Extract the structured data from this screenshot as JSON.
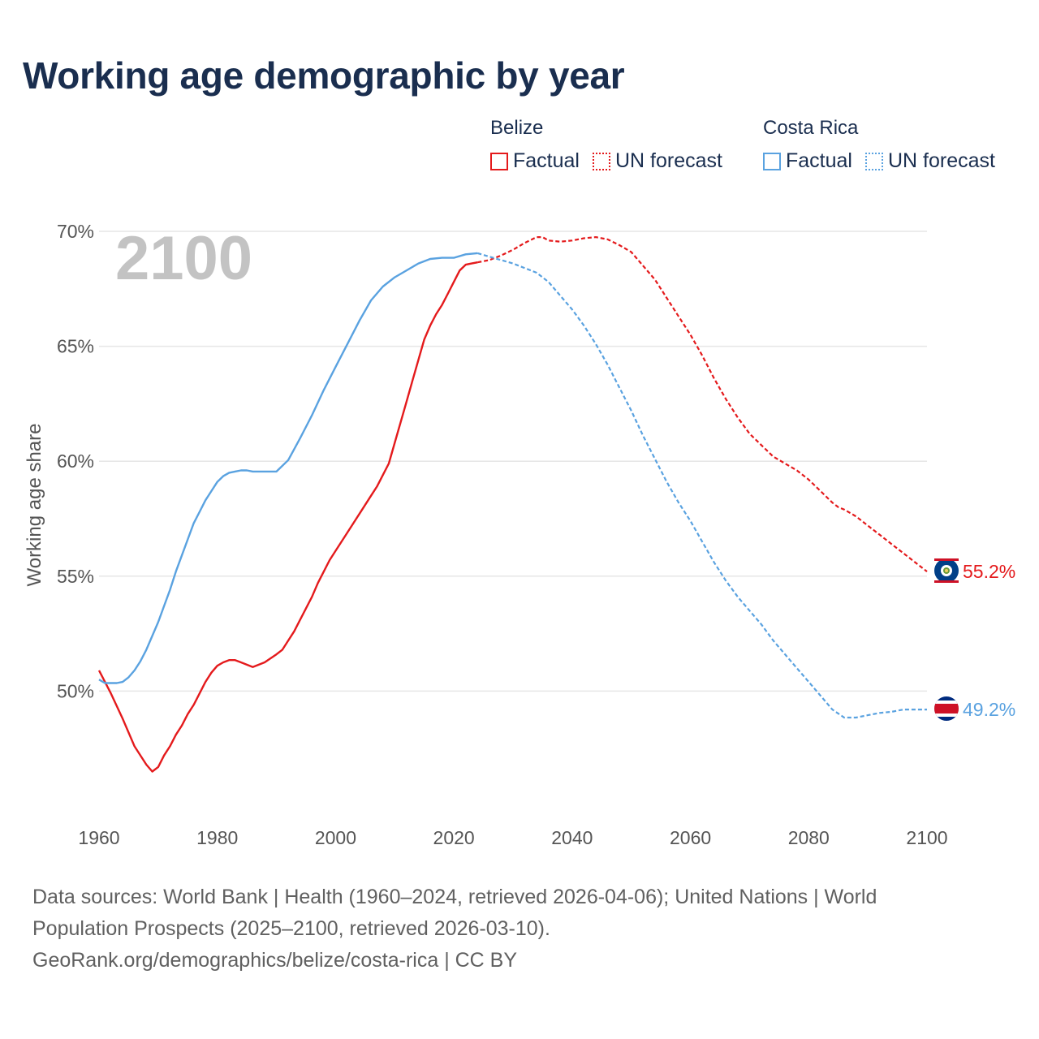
{
  "title": "Working age demographic by year",
  "legend": {
    "groups": [
      {
        "country": "Belize",
        "factual_label": "Factual",
        "forecast_label": "UN forecast",
        "color": "#e41a1c"
      },
      {
        "country": "Costa Rica",
        "factual_label": "Factual",
        "forecast_label": "UN forecast",
        "color": "#5aa2e0"
      }
    ]
  },
  "footer": {
    "line1": "Data sources: World Bank | Health (1960–2024, retrieved 2026-04-06); United Nations | World",
    "line2": "Population Prospects (2025–2100, retrieved 2026-03-10).",
    "line3": "GeoRank.org/demographics/belize/costa-rica | CC BY"
  },
  "chart_data": {
    "type": "line",
    "title": "Working age demographic by year",
    "ylabel": "Working age share",
    "xlabel": "",
    "year_watermark": "2100",
    "xlim": [
      1960,
      2100
    ],
    "ylim": [
      45,
      70
    ],
    "x_ticks": [
      "1960",
      "1980",
      "2000",
      "2020",
      "2040",
      "2060",
      "2080",
      "2100"
    ],
    "y_ticks": [
      {
        "value": 50,
        "label": "50%"
      },
      {
        "value": 55,
        "label": "55%"
      },
      {
        "value": 60,
        "label": "60%"
      },
      {
        "value": 65,
        "label": "65%"
      },
      {
        "value": 70,
        "label": "70%"
      }
    ],
    "forecast_start_year": 2024,
    "series": [
      {
        "name": "Belize",
        "color": "#e41a1c",
        "end_label": "55.2%",
        "flag": "belize-flag",
        "points": [
          [
            1960,
            50.9
          ],
          [
            1962,
            49.9
          ],
          [
            1964,
            48.8
          ],
          [
            1966,
            47.6
          ],
          [
            1968,
            46.8
          ],
          [
            1969,
            46.5
          ],
          [
            1970,
            46.7
          ],
          [
            1971,
            47.2
          ],
          [
            1972,
            47.6
          ],
          [
            1973,
            48.1
          ],
          [
            1974,
            48.5
          ],
          [
            1975,
            49.0
          ],
          [
            1976,
            49.4
          ],
          [
            1977,
            49.9
          ],
          [
            1978,
            50.4
          ],
          [
            1979,
            50.8
          ],
          [
            1980,
            51.1
          ],
          [
            1981,
            51.25
          ],
          [
            1982,
            51.35
          ],
          [
            1983,
            51.35
          ],
          [
            1984,
            51.25
          ],
          [
            1986,
            51.05
          ],
          [
            1988,
            51.25
          ],
          [
            1990,
            51.6
          ],
          [
            1991,
            51.8
          ],
          [
            1992,
            52.2
          ],
          [
            1993,
            52.6
          ],
          [
            1994,
            53.1
          ],
          [
            1995,
            53.6
          ],
          [
            1996,
            54.1
          ],
          [
            1997,
            54.7
          ],
          [
            1998,
            55.2
          ],
          [
            1999,
            55.7
          ],
          [
            2000,
            56.1
          ],
          [
            2002,
            56.9
          ],
          [
            2004,
            57.7
          ],
          [
            2006,
            58.5
          ],
          [
            2007,
            58.9
          ],
          [
            2008,
            59.4
          ],
          [
            2009,
            59.9
          ],
          [
            2010,
            60.8
          ],
          [
            2011,
            61.7
          ],
          [
            2012,
            62.6
          ],
          [
            2013,
            63.5
          ],
          [
            2014,
            64.4
          ],
          [
            2015,
            65.3
          ],
          [
            2016,
            65.9
          ],
          [
            2017,
            66.4
          ],
          [
            2018,
            66.8
          ],
          [
            2019,
            67.3
          ],
          [
            2020,
            67.8
          ],
          [
            2021,
            68.3
          ],
          [
            2022,
            68.55
          ],
          [
            2023,
            68.6
          ],
          [
            2024,
            68.65
          ],
          [
            2026,
            68.75
          ],
          [
            2028,
            68.95
          ],
          [
            2030,
            69.2
          ],
          [
            2032,
            69.5
          ],
          [
            2034,
            69.75
          ],
          [
            2035,
            69.75
          ],
          [
            2036,
            69.6
          ],
          [
            2038,
            69.55
          ],
          [
            2040,
            69.6
          ],
          [
            2042,
            69.7
          ],
          [
            2044,
            69.75
          ],
          [
            2046,
            69.65
          ],
          [
            2048,
            69.4
          ],
          [
            2050,
            69.1
          ],
          [
            2052,
            68.5
          ],
          [
            2054,
            67.9
          ],
          [
            2056,
            67.1
          ],
          [
            2058,
            66.3
          ],
          [
            2060,
            65.5
          ],
          [
            2062,
            64.6
          ],
          [
            2064,
            63.6
          ],
          [
            2066,
            62.7
          ],
          [
            2068,
            61.9
          ],
          [
            2070,
            61.2
          ],
          [
            2072,
            60.7
          ],
          [
            2074,
            60.2
          ],
          [
            2076,
            59.9
          ],
          [
            2078,
            59.6
          ],
          [
            2080,
            59.2
          ],
          [
            2082,
            58.7
          ],
          [
            2084,
            58.2
          ],
          [
            2085,
            58.0
          ],
          [
            2086,
            57.9
          ],
          [
            2088,
            57.6
          ],
          [
            2090,
            57.2
          ],
          [
            2092,
            56.8
          ],
          [
            2094,
            56.4
          ],
          [
            2096,
            56.0
          ],
          [
            2098,
            55.6
          ],
          [
            2100,
            55.2
          ]
        ]
      },
      {
        "name": "Costa Rica",
        "color": "#5aa2e0",
        "end_label": "49.2%",
        "flag": "costa-rica-flag",
        "points": [
          [
            1960,
            50.5
          ],
          [
            1961,
            50.35
          ],
          [
            1962,
            50.35
          ],
          [
            1963,
            50.35
          ],
          [
            1964,
            50.4
          ],
          [
            1965,
            50.6
          ],
          [
            1966,
            50.9
          ],
          [
            1967,
            51.3
          ],
          [
            1968,
            51.8
          ],
          [
            1969,
            52.4
          ],
          [
            1970,
            53.0
          ],
          [
            1971,
            53.7
          ],
          [
            1972,
            54.4
          ],
          [
            1973,
            55.2
          ],
          [
            1974,
            55.9
          ],
          [
            1975,
            56.6
          ],
          [
            1976,
            57.3
          ],
          [
            1977,
            57.8
          ],
          [
            1978,
            58.3
          ],
          [
            1979,
            58.7
          ],
          [
            1980,
            59.1
          ],
          [
            1981,
            59.35
          ],
          [
            1982,
            59.5
          ],
          [
            1983,
            59.55
          ],
          [
            1984,
            59.6
          ],
          [
            1985,
            59.6
          ],
          [
            1986,
            59.55
          ],
          [
            1988,
            59.55
          ],
          [
            1990,
            59.55
          ],
          [
            1992,
            60.05
          ],
          [
            1994,
            61.0
          ],
          [
            1996,
            62.0
          ],
          [
            1998,
            63.1
          ],
          [
            2000,
            64.1
          ],
          [
            2002,
            65.1
          ],
          [
            2004,
            66.1
          ],
          [
            2006,
            67.0
          ],
          [
            2008,
            67.6
          ],
          [
            2010,
            68.0
          ],
          [
            2012,
            68.3
          ],
          [
            2014,
            68.6
          ],
          [
            2016,
            68.8
          ],
          [
            2018,
            68.85
          ],
          [
            2020,
            68.85
          ],
          [
            2022,
            69.0
          ],
          [
            2024,
            69.05
          ],
          [
            2026,
            68.9
          ],
          [
            2028,
            68.75
          ],
          [
            2030,
            68.6
          ],
          [
            2032,
            68.4
          ],
          [
            2034,
            68.2
          ],
          [
            2036,
            67.8
          ],
          [
            2038,
            67.2
          ],
          [
            2040,
            66.6
          ],
          [
            2042,
            65.9
          ],
          [
            2044,
            65.1
          ],
          [
            2046,
            64.2
          ],
          [
            2048,
            63.2
          ],
          [
            2050,
            62.2
          ],
          [
            2052,
            61.1
          ],
          [
            2054,
            60.1
          ],
          [
            2056,
            59.1
          ],
          [
            2058,
            58.2
          ],
          [
            2060,
            57.4
          ],
          [
            2062,
            56.5
          ],
          [
            2064,
            55.6
          ],
          [
            2066,
            54.8
          ],
          [
            2068,
            54.1
          ],
          [
            2070,
            53.5
          ],
          [
            2072,
            52.9
          ],
          [
            2074,
            52.2
          ],
          [
            2076,
            51.6
          ],
          [
            2078,
            51.0
          ],
          [
            2080,
            50.4
          ],
          [
            2082,
            49.8
          ],
          [
            2084,
            49.2
          ],
          [
            2086,
            48.85
          ],
          [
            2088,
            48.85
          ],
          [
            2090,
            48.95
          ],
          [
            2092,
            49.05
          ],
          [
            2094,
            49.1
          ],
          [
            2096,
            49.2
          ],
          [
            2098,
            49.2
          ],
          [
            2100,
            49.2
          ]
        ]
      }
    ]
  }
}
